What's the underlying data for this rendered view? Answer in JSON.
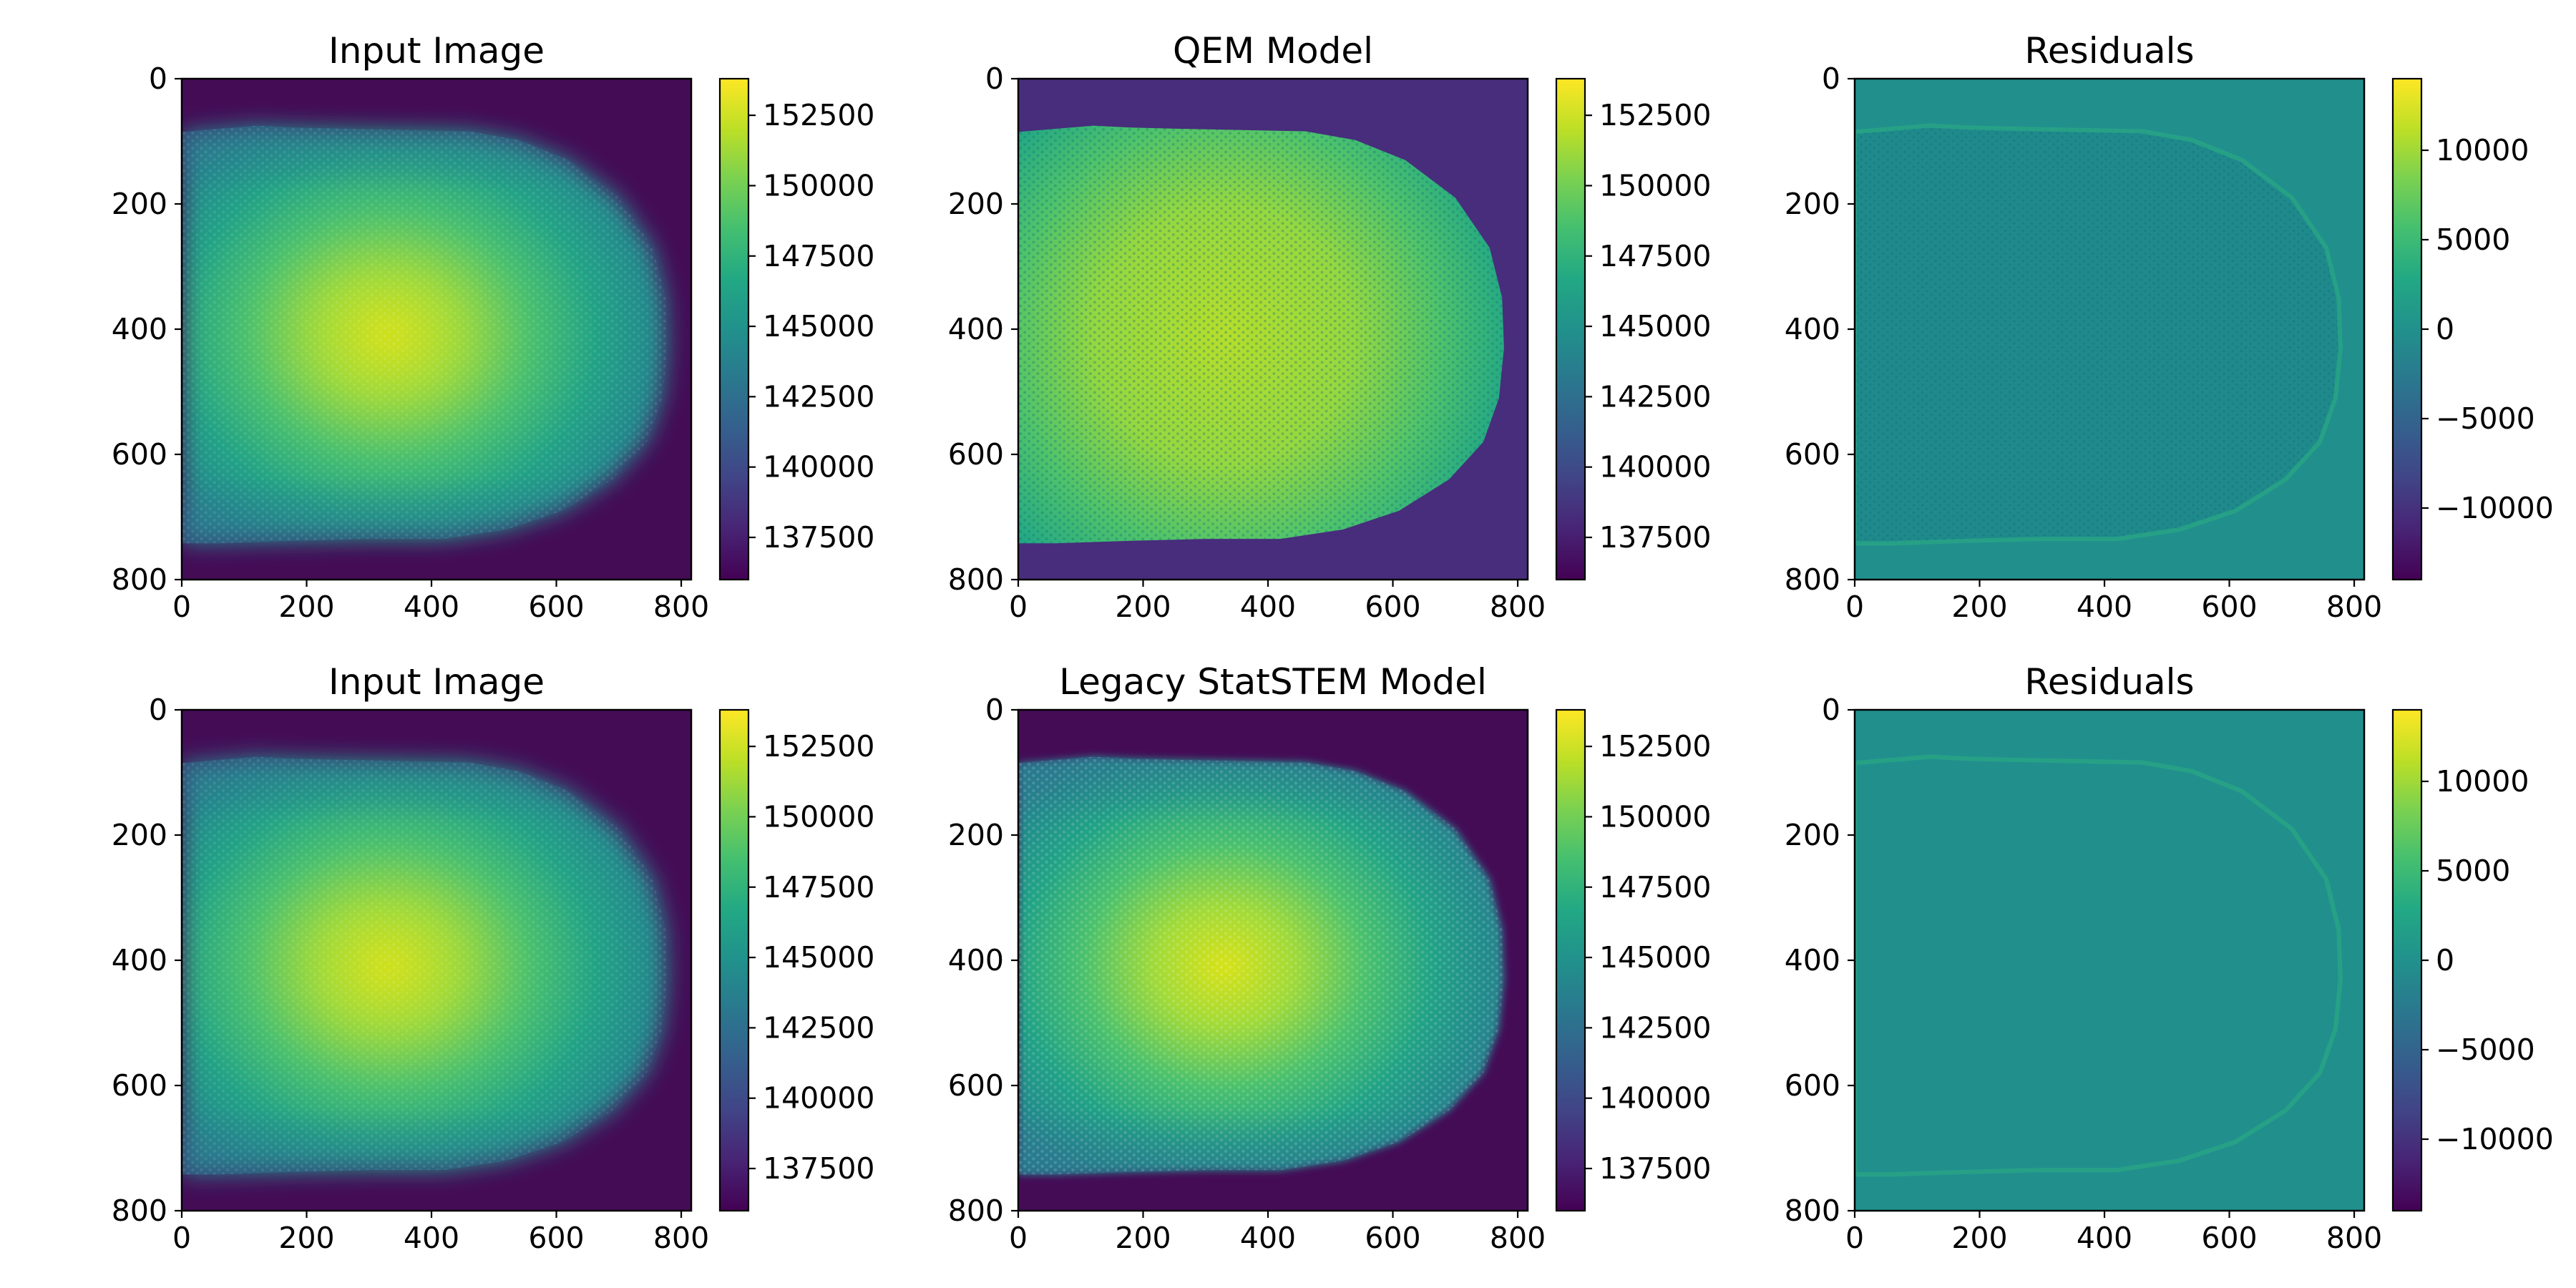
{
  "chart_data": [
    {
      "type": "heatmap",
      "title": "Input Image",
      "xticks": [
        "0",
        "200",
        "400",
        "600",
        "800"
      ],
      "yticks": [
        "0",
        "200",
        "400",
        "600",
        "800"
      ],
      "xlim": [
        0,
        816
      ],
      "ylim": [
        800,
        0
      ],
      "colormap": "viridis",
      "colorbar": {
        "vmin": 136000,
        "vmax": 153800,
        "ticks": [
          137500,
          140000,
          142500,
          145000,
          147500,
          150000,
          152500
        ],
        "tick_labels": [
          "137500",
          "140000",
          "142500",
          "145000",
          "147500",
          "150000",
          "152500"
        ]
      }
    },
    {
      "type": "heatmap",
      "title": "QEM Model",
      "xticks": [
        "0",
        "200",
        "400",
        "600",
        "800"
      ],
      "yticks": [
        "0",
        "200",
        "400",
        "600",
        "800"
      ],
      "xlim": [
        0,
        816
      ],
      "ylim": [
        800,
        0
      ],
      "colormap": "viridis",
      "colorbar": {
        "vmin": 136000,
        "vmax": 153800,
        "ticks": [
          137500,
          140000,
          142500,
          145000,
          147500,
          150000,
          152500
        ],
        "tick_labels": [
          "137500",
          "140000",
          "142500",
          "145000",
          "147500",
          "150000",
          "152500"
        ]
      }
    },
    {
      "type": "heatmap",
      "title": "Residuals",
      "xticks": [
        "0",
        "200",
        "400",
        "600",
        "800"
      ],
      "yticks": [
        "0",
        "200",
        "400",
        "600",
        "800"
      ],
      "xlim": [
        0,
        816
      ],
      "ylim": [
        800,
        0
      ],
      "colormap": "viridis",
      "colorbar": {
        "vmin": -14000,
        "vmax": 14000,
        "ticks": [
          -10000,
          -5000,
          0,
          5000,
          10000
        ],
        "tick_labels": [
          "−10000",
          "−5000",
          "0",
          "5000",
          "10000"
        ]
      }
    },
    {
      "type": "heatmap",
      "title": "Input Image",
      "xticks": [
        "0",
        "200",
        "400",
        "600",
        "800"
      ],
      "yticks": [
        "0",
        "200",
        "400",
        "600",
        "800"
      ],
      "xlim": [
        0,
        816
      ],
      "ylim": [
        800,
        0
      ],
      "colormap": "viridis",
      "colorbar": {
        "vmin": 136000,
        "vmax": 153800,
        "ticks": [
          137500,
          140000,
          142500,
          145000,
          147500,
          150000,
          152500
        ],
        "tick_labels": [
          "137500",
          "140000",
          "142500",
          "145000",
          "147500",
          "150000",
          "152500"
        ]
      }
    },
    {
      "type": "heatmap",
      "title": "Legacy StatSTEM Model",
      "xticks": [
        "0",
        "200",
        "400",
        "600",
        "800"
      ],
      "yticks": [
        "0",
        "200",
        "400",
        "600",
        "800"
      ],
      "xlim": [
        0,
        816
      ],
      "ylim": [
        800,
        0
      ],
      "colormap": "viridis",
      "colorbar": {
        "vmin": 136000,
        "vmax": 153800,
        "ticks": [
          137500,
          140000,
          142500,
          145000,
          147500,
          150000,
          152500
        ],
        "tick_labels": [
          "137500",
          "140000",
          "142500",
          "145000",
          "147500",
          "150000",
          "152500"
        ]
      }
    },
    {
      "type": "heatmap",
      "title": "Residuals",
      "xticks": [
        "0",
        "200",
        "400",
        "600",
        "800"
      ],
      "yticks": [
        "0",
        "200",
        "400",
        "600",
        "800"
      ],
      "xlim": [
        0,
        816
      ],
      "ylim": [
        800,
        0
      ],
      "colormap": "viridis",
      "colorbar": {
        "vmin": -14000,
        "vmax": 14000,
        "ticks": [
          -10000,
          -5000,
          0,
          5000,
          10000
        ],
        "tick_labels": [
          "−10000",
          "−5000",
          "0",
          "5000",
          "10000"
        ]
      }
    }
  ]
}
